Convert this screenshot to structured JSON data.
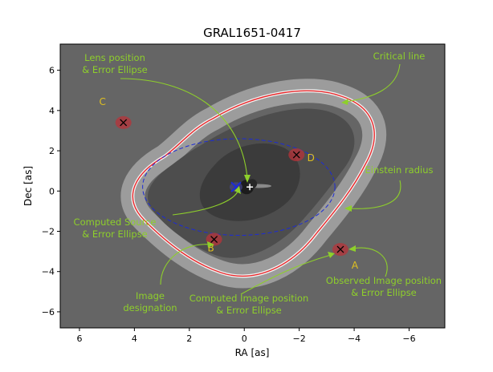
{
  "chart_data": {
    "type": "scatter",
    "title": "GRAL1651-0417",
    "xlabel": "RA [as]",
    "ylabel": "Dec [as]",
    "xlim": [
      6.7,
      -7.3
    ],
    "ylim": [
      -6.8,
      7.3
    ],
    "xticks": [
      6,
      4,
      2,
      0,
      -2,
      -4,
      -6
    ],
    "yticks": [
      6,
      4,
      2,
      0,
      -2,
      -4,
      -6
    ],
    "xtick_labels": [
      "6",
      "4",
      "2",
      "0",
      "−2",
      "−4",
      "−6"
    ],
    "ytick_labels": [
      "6",
      "4",
      "2",
      "0",
      "−2",
      "−4",
      "−6"
    ],
    "grid": false,
    "colors": {
      "background": "#656565",
      "mid_region": "#4e4e4e",
      "inner_region": "#3a3a3a",
      "critical_band": "#a6a6a6",
      "critical_line": "#e8292c",
      "einstein_circle": "#1c2bd6",
      "annotation": "#8ecf2b",
      "image_label": "#e0c020",
      "error_ellipse": "#b8333a"
    },
    "images": [
      {
        "label": "A",
        "x": -3.5,
        "y": -2.9
      },
      {
        "label": "B",
        "x": 1.1,
        "y": -2.4
      },
      {
        "label": "C",
        "x": 4.4,
        "y": 3.4
      },
      {
        "label": "D",
        "x": -1.9,
        "y": 1.8
      }
    ],
    "lens": {
      "x": -0.2,
      "y": 0.2
    },
    "source": {
      "x": 0.3,
      "y": 0.2
    },
    "einstein_radius": {
      "cx": 0.2,
      "cy": 0.2,
      "rx": 3.5,
      "ry": 2.4
    },
    "annotations": [
      {
        "id": "lens",
        "lines": [
          "Lens position",
          "& Error Ellipse"
        ]
      },
      {
        "id": "critical",
        "lines": [
          "Critical line"
        ]
      },
      {
        "id": "einstein",
        "lines": [
          "Einstein radius"
        ]
      },
      {
        "id": "source",
        "lines": [
          "Computed Source",
          "& Error Ellipse"
        ]
      },
      {
        "id": "designation",
        "lines": [
          "Image",
          "designation"
        ]
      },
      {
        "id": "computed_image",
        "lines": [
          "Computed Image position",
          "& Error Ellipse"
        ]
      },
      {
        "id": "observed_image",
        "lines": [
          "Observed Image position",
          "& Error Ellipse"
        ]
      }
    ]
  }
}
